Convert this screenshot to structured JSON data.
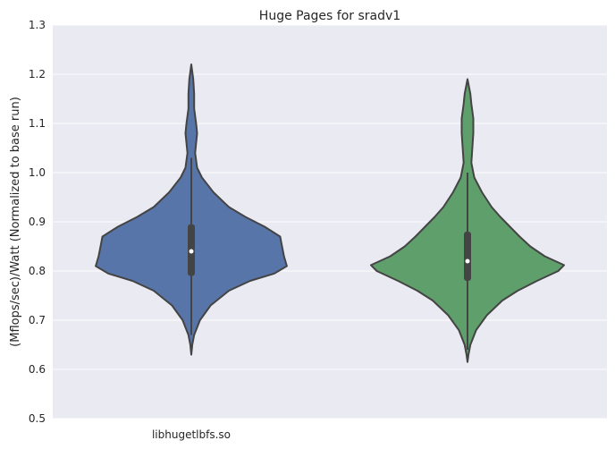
{
  "chart_data": {
    "type": "violin",
    "title": "Huge Pages for sradv1",
    "xlabel": "",
    "ylabel": "(Mflops/sec)/Watt (Normalized to base run)",
    "ylim": [
      0.5,
      1.3
    ],
    "yticks": [
      "0.5",
      "0.6",
      "0.7",
      "0.8",
      "0.9",
      "1.0",
      "1.1",
      "1.2",
      "1.3"
    ],
    "categories": [
      "libhugetlbfs.so",
      ""
    ],
    "grid": true,
    "colors": {
      "background": "#eaeaf2",
      "grid": "#ffffff",
      "outline": "#444444"
    },
    "violins": [
      {
        "color": "#5875a9",
        "max": 1.22,
        "min": 0.63,
        "whisker_low": 0.67,
        "whisker_high": 1.03,
        "q1": 0.79,
        "median": 0.84,
        "q3": 0.895,
        "profile": [
          [
            0.63,
            0.0
          ],
          [
            0.65,
            0.01
          ],
          [
            0.67,
            0.03
          ],
          [
            0.7,
            0.09
          ],
          [
            0.73,
            0.2
          ],
          [
            0.76,
            0.39
          ],
          [
            0.78,
            0.61
          ],
          [
            0.795,
            0.86
          ],
          [
            0.81,
            0.99
          ],
          [
            0.83,
            0.96
          ],
          [
            0.85,
            0.94
          ],
          [
            0.87,
            0.92
          ],
          [
            0.89,
            0.76
          ],
          [
            0.91,
            0.56
          ],
          [
            0.93,
            0.39
          ],
          [
            0.96,
            0.23
          ],
          [
            0.99,
            0.11
          ],
          [
            1.01,
            0.06
          ],
          [
            1.04,
            0.04
          ],
          [
            1.06,
            0.05
          ],
          [
            1.08,
            0.06
          ],
          [
            1.1,
            0.05
          ],
          [
            1.13,
            0.03
          ],
          [
            1.16,
            0.03
          ],
          [
            1.19,
            0.02
          ],
          [
            1.22,
            0.0
          ]
        ]
      },
      {
        "color": "#5e9f6b",
        "max": 1.19,
        "min": 0.615,
        "whisker_low": 0.64,
        "whisker_high": 1.0,
        "q1": 0.78,
        "median": 0.82,
        "q3": 0.88,
        "profile": [
          [
            0.615,
            0.0
          ],
          [
            0.63,
            0.01
          ],
          [
            0.65,
            0.03
          ],
          [
            0.68,
            0.09
          ],
          [
            0.71,
            0.2
          ],
          [
            0.74,
            0.36
          ],
          [
            0.76,
            0.52
          ],
          [
            0.78,
            0.72
          ],
          [
            0.8,
            0.94
          ],
          [
            0.812,
            1.0
          ],
          [
            0.83,
            0.8
          ],
          [
            0.85,
            0.65
          ],
          [
            0.87,
            0.54
          ],
          [
            0.89,
            0.44
          ],
          [
            0.91,
            0.34
          ],
          [
            0.93,
            0.25
          ],
          [
            0.96,
            0.15
          ],
          [
            0.99,
            0.07
          ],
          [
            1.02,
            0.04
          ],
          [
            1.05,
            0.05
          ],
          [
            1.08,
            0.06
          ],
          [
            1.11,
            0.06
          ],
          [
            1.14,
            0.04
          ],
          [
            1.16,
            0.03
          ],
          [
            1.19,
            0.0
          ]
        ]
      }
    ]
  }
}
